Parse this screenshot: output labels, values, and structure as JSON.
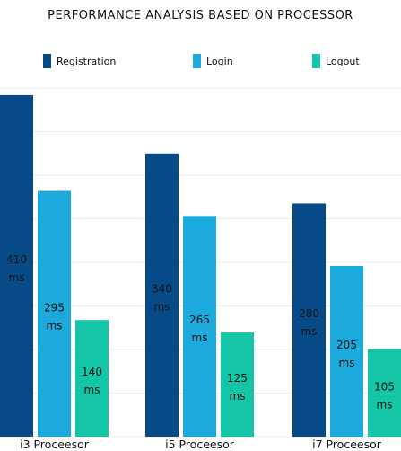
{
  "chart_data": {
    "type": "bar",
    "title": "PERFORMANCE ANALYSIS BASED ON PROCESSOR",
    "categories": [
      "i3 Proceesor",
      "i5 Proceesor",
      "i7 Proceesor"
    ],
    "series": [
      {
        "name": "Registration",
        "values": [
          410,
          340,
          280
        ],
        "color": "#074a88"
      },
      {
        "name": "Login",
        "values": [
          295,
          265,
          205
        ],
        "color": "#1ca9dc"
      },
      {
        "name": "Logout",
        "values": [
          140,
          125,
          105
        ],
        "color": "#14c6a6"
      }
    ],
    "value_labels": [
      [
        "410",
        "295",
        "140"
      ],
      [
        "340",
        "265",
        "125"
      ],
      [
        "280",
        "205",
        "105"
      ]
    ],
    "unit_label": "ms",
    "ylim": [
      0,
      425
    ],
    "grid": true,
    "legend_position": "top"
  }
}
